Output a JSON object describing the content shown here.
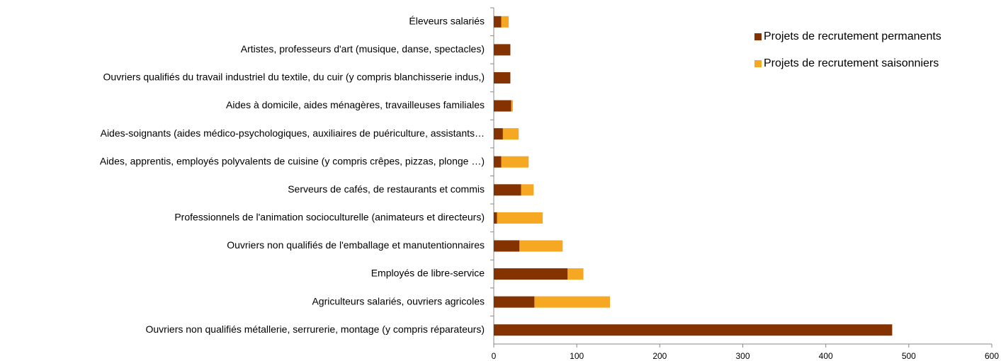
{
  "chart_data": {
    "type": "stacked-barh",
    "categories": [
      "Éleveurs salariés",
      "Artistes, professeurs d'art (musique, danse, spectacles)",
      "Ouvriers qualifiés du travail industriel du textile, du cuir (y compris blanchisserie indus,)",
      "Aides à domicile, aides ménagères, travailleuses familiales",
      "Aides-soignants (aides médico-psychologiques, auxiliaires de puériculture, assistants…",
      "Aides, apprentis, employés polyvalents de cuisine (y compris crêpes, pizzas, plonge …)",
      "Serveurs de cafés, de restaurants et commis",
      "Professionnels de l'animation socioculturelle (animateurs et directeurs)",
      "Ouvriers non qualifiés de l'emballage et manutentionnaires",
      "Employés de libre-service",
      "Agriculteurs salariés, ouvriers agricoles",
      "Ouvriers non qualifiés métallerie, serrurerie, montage (y compris réparateurs)"
    ],
    "series": [
      {
        "name": "Projets de recrutement permanents",
        "color": "#833200",
        "values": [
          9,
          20,
          20,
          21,
          11,
          9,
          33,
          4,
          31,
          89,
          49,
          480
        ]
      },
      {
        "name": "Projets de recrutement saisonniers",
        "color": "#f7a823",
        "values": [
          9,
          0,
          0,
          2,
          19,
          33,
          15,
          55,
          52,
          19,
          91,
          0
        ]
      }
    ],
    "xlim": [
      0,
      600
    ],
    "xticks": [
      0,
      100,
      200,
      300,
      400,
      500,
      600
    ]
  }
}
